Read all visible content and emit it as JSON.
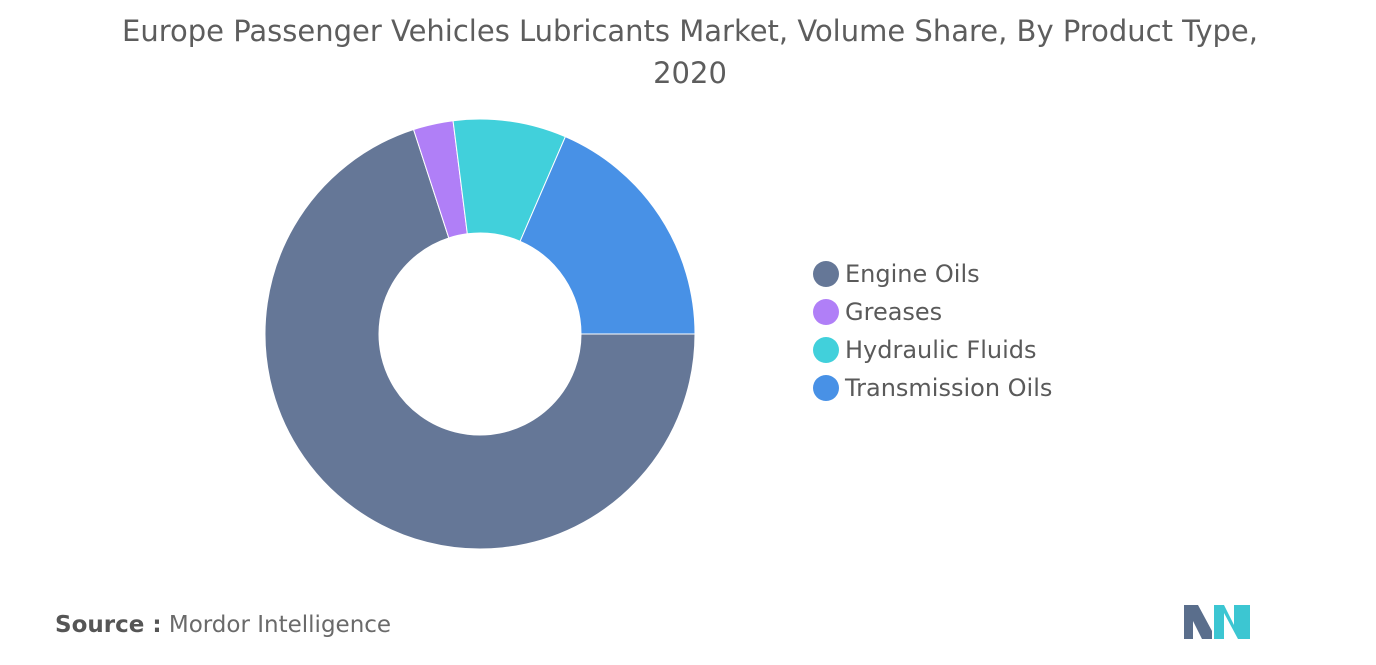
{
  "title": "Europe Passenger Vehicles Lubricants Market, Volume Share, By Product Type, 2020",
  "source": {
    "label": "Source :",
    "value": "Mordor Intelligence"
  },
  "chart_data": {
    "type": "pie",
    "title": "Europe Passenger Vehicles Lubricants Market, Volume Share, By Product Type, 2020",
    "donut": true,
    "legend_position": "right",
    "categories": [
      "Engine Oils",
      "Greases",
      "Hydraulic Fluids",
      "Transmission Oils"
    ],
    "values": [
      70.0,
      3.0,
      8.5,
      18.5
    ],
    "colors": [
      "#657797",
      "#b07ff7",
      "#41d0db",
      "#4891e6"
    ]
  },
  "logo": {
    "icon": "mordor-intelligence-logo",
    "colors": [
      "#5a6e8c",
      "#3cc6d2"
    ]
  }
}
